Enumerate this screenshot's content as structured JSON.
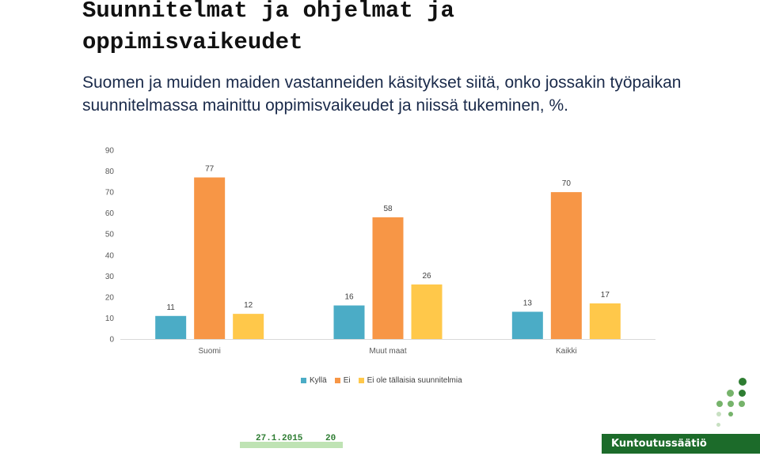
{
  "slide": {
    "title": "Suunnitelmat ja ohjelmat ja oppimisvaikeudet",
    "subtitle": "Suomen ja muiden maiden vastanneiden käsitykset siitä, onko jossakin työpaikan suunnitelmassa mainittu oppimisvaikeudet ja niissä tukeminen, %.",
    "footer_date": "27.1.2015",
    "page_number": "20",
    "brand": "Kuntoutussäätiö"
  },
  "colors": {
    "series": [
      "#4bacc6",
      "#f79646",
      "#ffc84a"
    ],
    "accent_green": "#1c6b2a",
    "dot_dark": "#2e7d32",
    "dot_mid": "#76b36b",
    "dot_light": "#c8e0c2"
  },
  "chart_data": {
    "type": "bar",
    "categories": [
      "Suomi",
      "Muut maat",
      "Kaikki"
    ],
    "series": [
      {
        "name": "Kyllä",
        "values": [
          11,
          16,
          13
        ]
      },
      {
        "name": "Ei",
        "values": [
          77,
          58,
          70
        ]
      },
      {
        "name": "Ei ole tällaisia suunnitelmia",
        "values": [
          12,
          26,
          17
        ]
      }
    ],
    "ylim": [
      0,
      90
    ],
    "yticks": [
      0,
      10,
      20,
      30,
      40,
      50,
      60,
      70,
      80,
      90
    ],
    "grid": false,
    "legend_position": "bottom",
    "data_labels": true
  }
}
